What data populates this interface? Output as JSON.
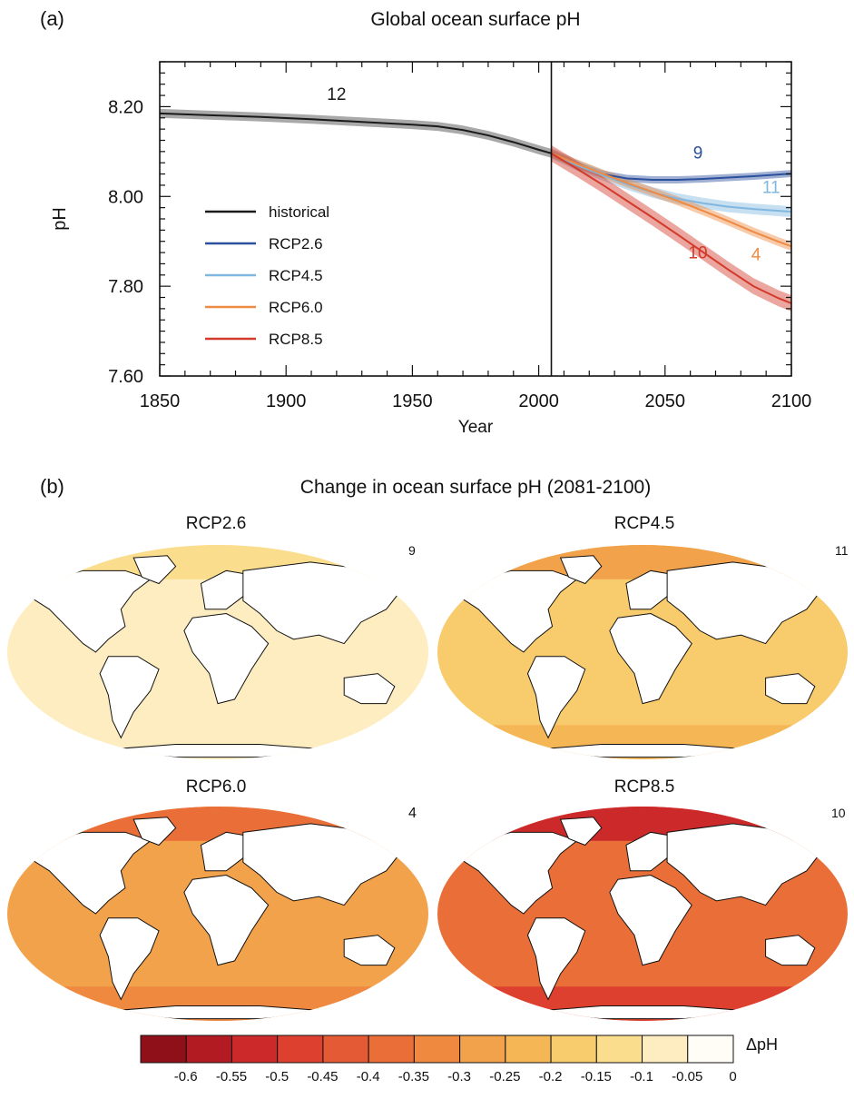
{
  "panel_a": {
    "tag": "(a)",
    "title": "Global ocean surface pH"
  },
  "panel_b": {
    "tag": "(b)",
    "title": "Change in ocean surface pH (2081-2100)"
  },
  "colors": {
    "historical": "#1a1a1a",
    "rcp26": "#2c4f9e",
    "rcp45": "#80b7e0",
    "rcp60": "#ee8a43",
    "rcp85": "#d23a2b"
  },
  "chart_data": [
    {
      "type": "line",
      "title": "Global ocean surface pH",
      "xlabel": "Year",
      "ylabel": "pH",
      "xlim": [
        1850,
        2100
      ],
      "ylim": [
        7.6,
        8.3
      ],
      "xticks": [
        1850,
        1900,
        1950,
        2000,
        2050,
        2100
      ],
      "yticks": [
        7.6,
        7.8,
        8.0,
        8.2
      ],
      "ytick_labels": [
        "7.60",
        "7.80",
        "8.00",
        "8.20"
      ],
      "divider_year": 2005,
      "legend_placement": "left",
      "series": [
        {
          "name": "historical",
          "key": "historical",
          "model_count": "12",
          "x": [
            1850,
            1870,
            1890,
            1910,
            1930,
            1950,
            1960,
            1970,
            1980,
            1990,
            2000,
            2005
          ],
          "y": [
            8.185,
            8.181,
            8.177,
            8.172,
            8.166,
            8.16,
            8.156,
            8.148,
            8.136,
            8.121,
            8.104,
            8.096
          ],
          "band": 0.01
        },
        {
          "name": "RCP2.6",
          "key": "rcp26",
          "model_count": "9",
          "x": [
            2005,
            2015,
            2025,
            2035,
            2045,
            2055,
            2065,
            2075,
            2085,
            2095,
            2100
          ],
          "y": [
            8.096,
            8.07,
            8.05,
            8.04,
            8.037,
            8.037,
            8.039,
            8.042,
            8.045,
            8.049,
            8.051
          ],
          "band": 0.008
        },
        {
          "name": "RCP4.5",
          "key": "rcp45",
          "model_count": "11",
          "x": [
            2005,
            2015,
            2025,
            2035,
            2045,
            2055,
            2065,
            2075,
            2085,
            2095,
            2100
          ],
          "y": [
            8.096,
            8.07,
            8.048,
            8.027,
            8.009,
            7.995,
            7.985,
            7.977,
            7.972,
            7.968,
            7.966
          ],
          "band": 0.012
        },
        {
          "name": "RCP6.0",
          "key": "rcp60",
          "model_count": "4",
          "x": [
            2005,
            2015,
            2025,
            2035,
            2045,
            2055,
            2065,
            2075,
            2085,
            2095,
            2100
          ],
          "y": [
            8.096,
            8.073,
            8.051,
            8.03,
            8.01,
            7.99,
            7.968,
            7.945,
            7.921,
            7.899,
            7.889
          ],
          "band": 0.01
        },
        {
          "name": "RCP8.5",
          "key": "rcp85",
          "model_count": "10",
          "x": [
            2005,
            2015,
            2025,
            2035,
            2045,
            2055,
            2065,
            2075,
            2085,
            2095,
            2100
          ],
          "y": [
            8.096,
            8.062,
            8.027,
            7.99,
            7.953,
            7.915,
            7.876,
            7.837,
            7.8,
            7.773,
            7.762
          ],
          "band": 0.018
        }
      ],
      "annotations": [
        {
          "text": "12",
          "x": 1920,
          "y": 8.215,
          "color": "#1a1a1a"
        },
        {
          "text": "9",
          "x": 2063,
          "y": 8.085,
          "color": "#2c4f9e"
        },
        {
          "text": "11",
          "x": 2092,
          "y": 8.008,
          "color": "#80b7e0"
        },
        {
          "text": "10",
          "x": 2063,
          "y": 7.862,
          "color": "#d23a2b"
        },
        {
          "text": "4",
          "x": 2086,
          "y": 7.858,
          "color": "#ee8a43"
        }
      ]
    },
    {
      "type": "heatmap",
      "title": "Change in ocean surface pH (2081-2100)",
      "maps": [
        {
          "name": "RCP2.6",
          "model_count": "9",
          "typical_change": -0.08,
          "high_lat_change": -0.12
        },
        {
          "name": "RCP4.5",
          "model_count": "11",
          "typical_change": -0.17,
          "high_lat_change": -0.28
        },
        {
          "name": "RCP6.0",
          "model_count": "4",
          "typical_change": -0.3,
          "high_lat_change": -0.4
        },
        {
          "name": "RCP8.5",
          "model_count": "10",
          "typical_change": -0.4,
          "high_lat_change": -0.55
        }
      ],
      "colorbar": {
        "label": "ΔpH",
        "tick_labels": [
          "-0.6",
          "-0.55",
          "-0.5",
          "-0.45",
          "-0.4",
          "-0.35",
          "-0.3",
          "-0.25",
          "-0.2",
          "-0.15",
          "-0.1",
          "-0.05",
          "0"
        ],
        "colors": [
          "#8f1019",
          "#b31b23",
          "#cc2a2a",
          "#dd402f",
          "#e35a35",
          "#e96e38",
          "#ef8940",
          "#f2a24b",
          "#f5b656",
          "#f8cb6d",
          "#fadd8d",
          "#fdedc0",
          "#fffdf5"
        ]
      }
    }
  ]
}
